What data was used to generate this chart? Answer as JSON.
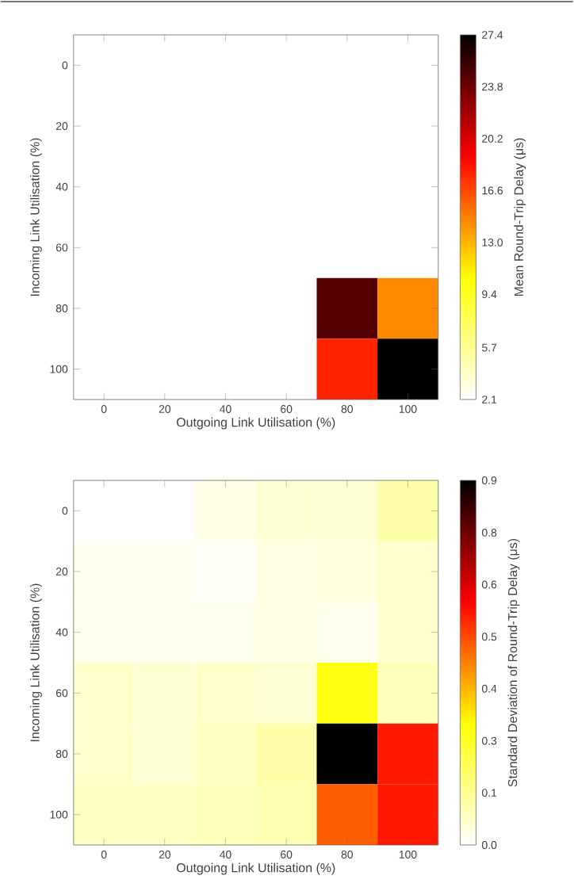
{
  "chart_data": [
    {
      "type": "heatmap",
      "xlabel": "Outgoing Link Utilisation (%)",
      "ylabel": "Incoming Link Utilisation (%)",
      "clabel": "Mean Round-Trip Delay (μs)",
      "categories": [
        "0",
        "20",
        "40",
        "60",
        "80",
        "100"
      ],
      "y_categories": [
        "0",
        "20",
        "40",
        "60",
        "80",
        "100"
      ],
      "cells": [
        [
          2.1,
          2.1,
          2.1,
          2.1,
          2.1,
          2.1
        ],
        [
          2.1,
          2.1,
          2.1,
          2.1,
          2.1,
          2.1
        ],
        [
          2.1,
          2.1,
          2.1,
          2.1,
          2.1,
          2.1
        ],
        [
          2.1,
          2.1,
          2.1,
          2.1,
          2.1,
          2.1
        ],
        [
          2.1,
          2.1,
          2.1,
          2.1,
          24.6,
          14.4
        ],
        [
          2.1,
          2.1,
          2.1,
          2.1,
          17.8,
          27.4
        ]
      ],
      "clim": [
        2.1,
        27.4
      ],
      "cticks": [
        2.1,
        5.7,
        9.4,
        {
          "value": 13.0,
          "label": "13.0"
        },
        16.6,
        20.2,
        23.8,
        27.4
      ]
    },
    {
      "type": "heatmap",
      "xlabel": "Outgoing Link Utilisation (%)",
      "ylabel": "Incoming Link Utilisation (%)",
      "clabel": "Standard Deviation of Round-Trip Delay (μs)",
      "categories": [
        "0",
        "20",
        "40",
        "60",
        "80",
        "100"
      ],
      "y_categories": [
        "0",
        "20",
        "40",
        "60",
        "80",
        "100"
      ],
      "cells": [
        [
          0.0,
          0.0,
          0.03,
          0.05,
          0.05,
          0.1
        ],
        [
          0.02,
          0.02,
          0.01,
          0.03,
          0.04,
          0.06
        ],
        [
          0.02,
          0.02,
          0.02,
          0.03,
          0.02,
          0.06
        ],
        [
          0.06,
          0.05,
          0.06,
          0.05,
          0.28,
          0.08
        ],
        [
          0.06,
          0.05,
          0.07,
          0.1,
          0.9,
          0.57
        ],
        [
          0.07,
          0.07,
          0.08,
          0.09,
          0.49,
          0.57
        ]
      ],
      "clim": [
        0.0,
        0.9
      ],
      "cticks": [
        {
          "value": 0.0,
          "label": "0.0"
        },
        {
          "value": 0.129,
          "label": "0.1"
        },
        {
          "value": 0.257,
          "label": "0.3"
        },
        {
          "value": 0.386,
          "label": "0.4"
        },
        {
          "value": 0.514,
          "label": "0.5"
        },
        {
          "value": 0.643,
          "label": "0.6"
        },
        {
          "value": 0.771,
          "label": "0.8"
        },
        0.9
      ]
    }
  ]
}
